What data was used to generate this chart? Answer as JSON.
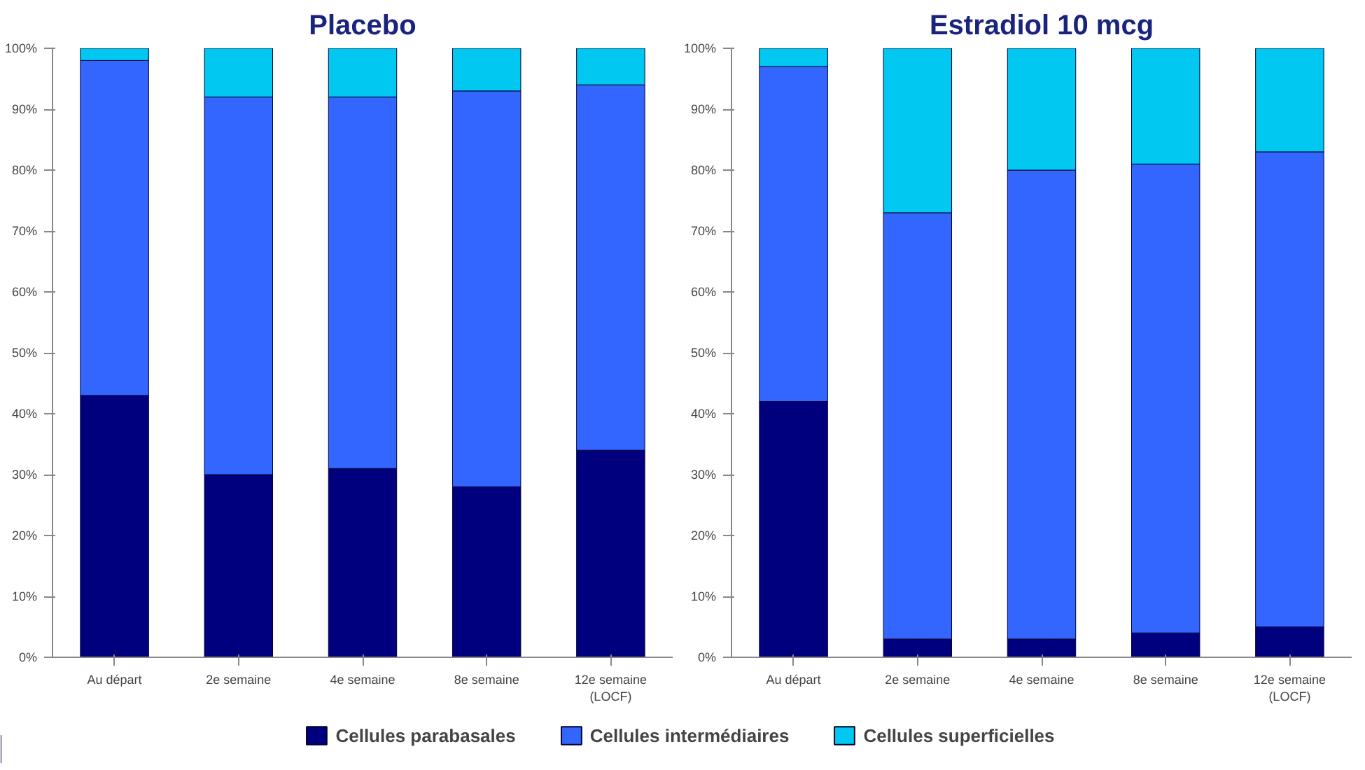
{
  "chart_data": [
    {
      "type": "bar",
      "stacked": true,
      "title": "Placebo",
      "categories": [
        "Au départ",
        "2e semaine",
        "4e semaine",
        "8e semaine",
        "12e semaine\n(LOCF)"
      ],
      "series": [
        {
          "name": "Cellules parabasales",
          "color": "#00007f",
          "values": [
            43,
            30,
            31,
            28,
            34
          ]
        },
        {
          "name": "Cellules intermédiaires",
          "color": "#3366ff",
          "values": [
            55,
            62,
            61,
            65,
            60
          ]
        },
        {
          "name": "Cellules superficielles",
          "color": "#00c8f0",
          "values": [
            2,
            8,
            8,
            7,
            6
          ]
        }
      ],
      "ylim": [
        0,
        100
      ],
      "yticks": [
        {
          "value": 0,
          "label": "0%"
        },
        {
          "value": 10,
          "label": "10%"
        },
        {
          "value": 20,
          "label": "20%"
        },
        {
          "value": 30,
          "label": "30%"
        },
        {
          "value": 40,
          "label": "40%"
        },
        {
          "value": 50,
          "label": "50%"
        },
        {
          "value": 60,
          "label": "60%"
        },
        {
          "value": 70,
          "label": "70%"
        },
        {
          "value": 80,
          "label": "80%"
        },
        {
          "value": 90,
          "label": "90%"
        },
        {
          "value": 100,
          "label": "100%"
        }
      ],
      "legend": "bottom"
    },
    {
      "type": "bar",
      "stacked": true,
      "title": "Estradiol 10 mcg",
      "categories": [
        "Au départ",
        "2e semaine",
        "4e semaine",
        "8e semaine",
        "12e semaine\n(LOCF)"
      ],
      "series": [
        {
          "color": "#00007f",
          "values": [
            42,
            3,
            3,
            4,
            5
          ]
        },
        {
          "color": "#3366ff",
          "values": [
            55,
            70,
            77,
            77,
            78
          ]
        },
        {
          "color": "#00c8f0",
          "values": [
            3,
            27,
            20,
            19,
            17
          ]
        }
      ],
      "ylim": [
        0,
        100
      ],
      "yticks": [
        {
          "value": 0,
          "label": "0%"
        },
        {
          "value": 10,
          "label": "10%"
        },
        {
          "value": 20,
          "label": "20%"
        },
        {
          "value": 30,
          "label": "30%"
        },
        {
          "value": 40,
          "label": "40%"
        },
        {
          "value": 50,
          "label": "50%"
        },
        {
          "value": 60,
          "label": "60%"
        },
        {
          "value": 70,
          "label": "70%"
        },
        {
          "value": 80,
          "label": "80%"
        },
        {
          "value": 90,
          "label": "90%"
        },
        {
          "value": 100,
          "label": "100%"
        }
      ],
      "legend": false
    }
  ]
}
